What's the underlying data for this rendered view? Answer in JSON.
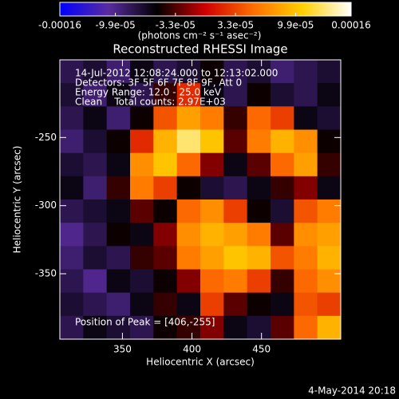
{
  "chart_data": {
    "type": "heatmap",
    "title": "Reconstructed RHESSI Image",
    "x_label": "Heliocentric X (arcsec)",
    "y_label": "Heliocentric Y (arcsec)",
    "colorbar_label": "(photons cm⁻² s⁻¹ asec⁻²)",
    "xlim": [
      305,
      507
    ],
    "ylim": [
      -398,
      -193
    ],
    "xticks": [
      350,
      400,
      450
    ],
    "yticks": [
      -250,
      -300,
      -350
    ],
    "zlim": [
      -0.00016,
      0.00016
    ],
    "zticks": [
      -0.00016,
      {
        "value": -9.9e-05,
        "label": "-9.9e-05"
      },
      {
        "value": -3.3e-05,
        "label": "-3.3e-05"
      },
      {
        "value": 3.3e-05,
        "label": "3.3e-05"
      },
      {
        "value": 9.9e-05,
        "label": "9.9e-05"
      },
      0.00016
    ],
    "colorscale": [
      "#0000ff",
      "#5a2ca0",
      "#000000",
      "#d00000",
      "#ff7000",
      "#ffd000",
      "#ffffff"
    ],
    "annotations": [
      "14-Jul-2012 12:08:24.000 to 12:13:02.000",
      "Detectors: 3F 5F 6F 7F 8F 9F, Att 0",
      "Energy Range: 12.0 - 25.0 keV",
      "Clean    Total counts: 2.97E+03",
      "Position of Peak = [406,-255]",
      "4-May-2014 20:18"
    ],
    "z": [
      [
        -8e-05,
        -7e-05,
        -9e-05,
        -6e-05,
        -8e-05,
        -7e-05,
        -5e-05,
        -8e-05,
        -7e-05,
        -9e-05,
        -8e-05,
        -7e-05
      ],
      [
        -7e-05,
        -9e-05,
        -6e-05,
        -8e-05,
        -4e-05,
        2e-05,
        -6e-05,
        -8e-05,
        -5e-05,
        -7e-05,
        -8e-05,
        -6e-05
      ],
      [
        -8e-05,
        -6e-05,
        -9e-05,
        -5e-05,
        4e-05,
        8e-05,
        6e-05,
        -4e-05,
        5e-05,
        3e-05,
        -6e-05,
        -7e-05
      ],
      [
        -9e-05,
        -7e-05,
        -5e-05,
        2e-05,
        9e-05,
        0.00013,
        0.0001,
        -3e-05,
        6e-05,
        9e-05,
        7e-05,
        -5e-05
      ],
      [
        -7e-05,
        -8e-05,
        -6e-05,
        7e-05,
        0.0001,
        5e-05,
        -2e-05,
        -6e-05,
        -3e-05,
        5e-05,
        8e-05,
        -4e-05
      ],
      [
        -6e-05,
        -9e-05,
        -4e-05,
        6e-05,
        3e-05,
        -5e-05,
        -7e-05,
        -8e-05,
        -6e-05,
        -4e-05,
        -2e-05,
        -6e-05
      ],
      [
        -8e-05,
        -7e-05,
        -6e-05,
        -3e-05,
        -5e-05,
        5e-05,
        7e-05,
        3e-05,
        -5e-05,
        -7e-05,
        4e-05,
        6e-05
      ],
      [
        -0.0001,
        -8e-05,
        -5e-05,
        -6e-05,
        -2e-05,
        7e-05,
        9e-05,
        8e-05,
        6e-05,
        -3e-05,
        7e-05,
        8e-05
      ],
      [
        -9e-05,
        -7e-05,
        -8e-05,
        -4e-05,
        -3e-05,
        6e-05,
        8e-05,
        0.0001,
        9e-05,
        4e-05,
        6e-05,
        9e-05
      ],
      [
        -8e-05,
        -0.0001,
        -6e-05,
        -7e-05,
        -5e-05,
        -2e-05,
        5e-05,
        6e-05,
        3e-05,
        -4e-05,
        5e-05,
        7e-05
      ],
      [
        -7e-05,
        -8e-05,
        -9e-05,
        -6e-05,
        -4e-05,
        -6e-05,
        3e-05,
        -3e-05,
        -5e-05,
        -6e-05,
        4e-05,
        3e-05
      ],
      [
        -8e-05,
        -6e-05,
        -7e-05,
        -8e-05,
        -5e-05,
        -4e-05,
        -2e-05,
        -6e-05,
        -7e-05,
        -3e-05,
        5e-05,
        9e-05
      ]
    ]
  }
}
